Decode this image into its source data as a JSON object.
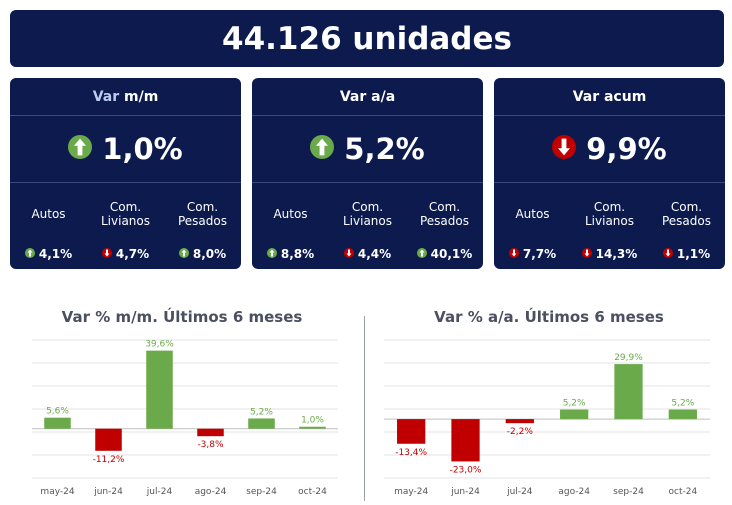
{
  "headline": "44.126 unidades",
  "cards": [
    {
      "title_light": "Var",
      "title_rest": "m/m",
      "main_value": "1,0%",
      "main_dir": "up",
      "subs": [
        {
          "label": "Autos",
          "value": "4,1%",
          "dir": "up"
        },
        {
          "label": "Com. Livianos",
          "value": "4,7%",
          "dir": "down"
        },
        {
          "label": "Com. Pesados",
          "value": "8,0%",
          "dir": "up"
        }
      ]
    },
    {
      "title_light": "",
      "title_rest": "Var a/a",
      "main_value": "5,2%",
      "main_dir": "up",
      "subs": [
        {
          "label": "Autos",
          "value": "8,8%",
          "dir": "up"
        },
        {
          "label": "Com. Livianos",
          "value": "4,4%",
          "dir": "down"
        },
        {
          "label": "Com. Pesados",
          "value": "40,1%",
          "dir": "up"
        }
      ]
    },
    {
      "title_light": "",
      "title_rest": "Var acum",
      "main_value": "9,9%",
      "main_dir": "down",
      "subs": [
        {
          "label": "Autos",
          "value": "7,7%",
          "dir": "down"
        },
        {
          "label": "Com. Livianos",
          "value": "14,3%",
          "dir": "down"
        },
        {
          "label": "Com. Pesados",
          "value": "1,1%",
          "dir": "down"
        }
      ]
    }
  ],
  "colors": {
    "navy": "#0c1a4d",
    "up": "#6aaa4a",
    "down": "#c00000"
  },
  "chart_data": [
    {
      "type": "bar",
      "title": "Var % m/m. Últimos 6 meses",
      "categories": [
        "may-24",
        "jun-24",
        "jul-24",
        "ago-24",
        "sep-24",
        "oct-24"
      ],
      "values": [
        5.6,
        -11.2,
        39.6,
        -3.8,
        5.2,
        1.0
      ],
      "labels": [
        "5,6%",
        "-11,2%",
        "39,6%",
        "-3,8%",
        "5,2%",
        "1,0%"
      ],
      "ylim": [
        -25,
        45
      ],
      "grid": true
    },
    {
      "type": "bar",
      "title": "Var % a/a. Últimos 6 meses",
      "categories": [
        "may-24",
        "jun-24",
        "jul-24",
        "ago-24",
        "sep-24",
        "oct-24"
      ],
      "values": [
        -13.4,
        -23.0,
        -2.2,
        5.2,
        29.9,
        5.2
      ],
      "labels": [
        "-13,4%",
        "-23,0%",
        "-2,2%",
        "5,2%",
        "29,9%",
        "5,2%"
      ],
      "ylim": [
        -32,
        43
      ],
      "grid": true
    }
  ]
}
